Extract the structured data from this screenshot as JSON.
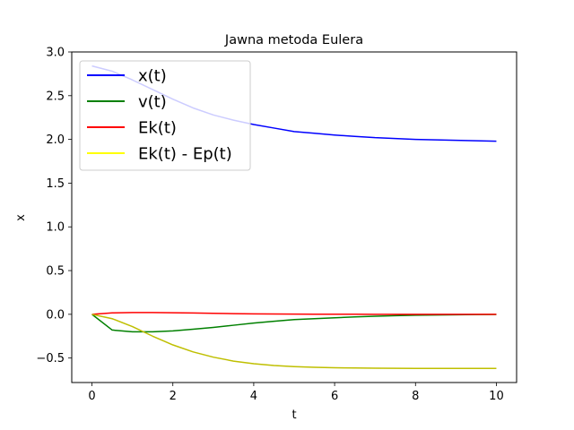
{
  "chart_data": {
    "type": "line",
    "title": "Jawna metoda Eulera",
    "xlabel": "t",
    "ylabel": "x",
    "xlim": [
      -0.5,
      10.5
    ],
    "ylim": [
      -0.78,
      3.0
    ],
    "xticks": [
      0,
      2,
      4,
      6,
      8,
      10
    ],
    "xtick_labels": [
      "0",
      "2",
      "4",
      "6",
      "8",
      "10"
    ],
    "yticks": [
      -0.5,
      0.0,
      0.5,
      1.0,
      1.5,
      2.0,
      2.5,
      3.0
    ],
    "ytick_labels": [
      "−0.5",
      "0.0",
      "0.5",
      "1.0",
      "1.5",
      "2.0",
      "2.5",
      "3.0"
    ],
    "grid": false,
    "legend_position": "top-left",
    "x": [
      0,
      0.5,
      1,
      1.5,
      2,
      2.5,
      3,
      3.5,
      4,
      4.5,
      5,
      5.5,
      6,
      6.5,
      7,
      7.5,
      8,
      8.5,
      9,
      9.5,
      10
    ],
    "series": [
      {
        "name": "x(t)",
        "color": "#0000ff",
        "values": [
          2.84,
          2.78,
          2.68,
          2.57,
          2.46,
          2.36,
          2.28,
          2.22,
          2.17,
          2.13,
          2.09,
          2.07,
          2.05,
          2.035,
          2.02,
          2.01,
          2.0,
          1.995,
          1.99,
          1.985,
          1.98
        ]
      },
      {
        "name": "v(t)",
        "color": "#008000",
        "values": [
          0.0,
          -0.18,
          -0.2,
          -0.2,
          -0.19,
          -0.17,
          -0.15,
          -0.125,
          -0.1,
          -0.08,
          -0.06,
          -0.05,
          -0.04,
          -0.03,
          -0.022,
          -0.016,
          -0.011,
          -0.008,
          -0.005,
          -0.003,
          -0.002
        ]
      },
      {
        "name": "Ek(t)",
        "color": "#ff0000",
        "values": [
          0.0,
          0.016,
          0.02,
          0.02,
          0.018,
          0.015,
          0.011,
          0.008,
          0.005,
          0.003,
          0.002,
          0.0013,
          0.0008,
          0.0005,
          0.0003,
          0.0002,
          0.0001,
          0.0,
          0.0,
          0.0,
          0.0
        ]
      },
      {
        "name": "Ek(t) - Ep(t)",
        "color": "#ffff00",
        "drawn_color": "#bfbf00",
        "values": [
          0.0,
          -0.05,
          -0.14,
          -0.25,
          -0.35,
          -0.43,
          -0.49,
          -0.535,
          -0.565,
          -0.585,
          -0.598,
          -0.606,
          -0.611,
          -0.614,
          -0.616,
          -0.617,
          -0.618,
          -0.618,
          -0.619,
          -0.619,
          -0.619
        ]
      }
    ]
  }
}
